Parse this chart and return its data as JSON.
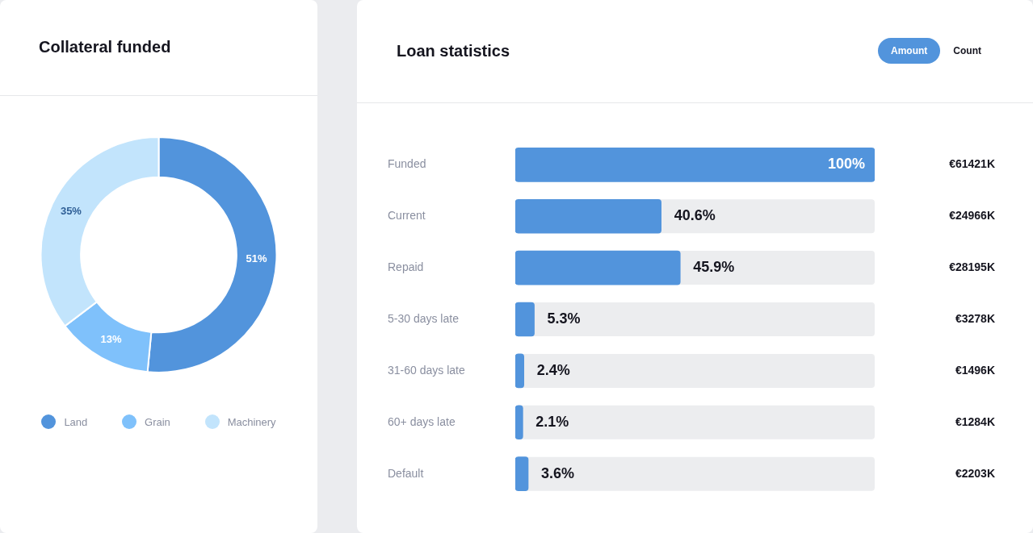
{
  "chart_data": [
    {
      "type": "donut",
      "title": "Collateral funded",
      "categories": [
        "Land",
        "Grain",
        "Machinery"
      ],
      "values": [
        51,
        13,
        35
      ],
      "value_labels": [
        "51%",
        "13%",
        "35%"
      ],
      "colors": [
        "#5294dc",
        "#7fc1fb",
        "#c2e4fc"
      ],
      "legend": "bottom"
    },
    {
      "type": "bar",
      "orientation": "horizontal",
      "title": "Loan statistics",
      "categories": [
        "Funded",
        "Current",
        "Repaid",
        "5-30 days late",
        "31-60 days late",
        "60+ days late",
        "Default"
      ],
      "values": [
        100,
        40.6,
        45.9,
        5.3,
        2.4,
        2.1,
        3.6
      ],
      "value_labels": [
        "100%",
        "40.6%",
        "45.9%",
        "5.3%",
        "2.4%",
        "2.1%",
        "3.6%"
      ],
      "color": "#5294dc",
      "xlim": [
        0,
        100
      ],
      "tick_labels": "y",
      "legend": false,
      "annotations": [
        "Amount",
        "Count",
        "€61421K",
        "€24966K",
        "€28195K",
        "€3278K",
        "€1496K",
        "€1284K",
        "€2203K"
      ]
    }
  ]
}
